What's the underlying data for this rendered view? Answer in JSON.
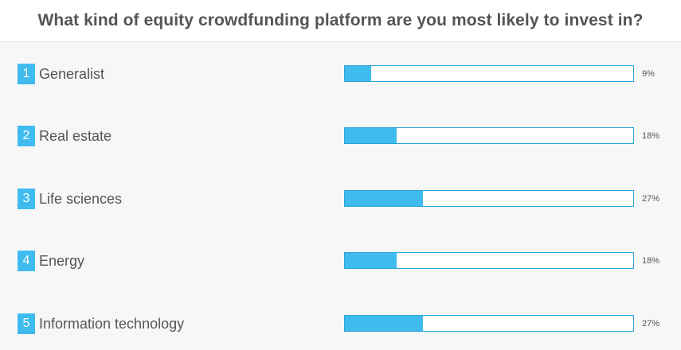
{
  "title": "What kind of equity crowdfunding platform are you most likely to invest in?",
  "colors": {
    "accent": "#3fbbee",
    "bar_border": "#2aa3d8",
    "text": "#555555",
    "panel_bg": "#f7f7f7"
  },
  "chart_data": {
    "type": "bar",
    "orientation": "horizontal",
    "title": "What kind of equity crowdfunding platform are you most likely to invest in?",
    "categories": [
      "Generalist",
      "Real estate",
      "Life sciences",
      "Energy",
      "Information technology"
    ],
    "values": [
      9,
      18,
      27,
      18,
      27
    ],
    "value_labels": [
      "9%",
      "18%",
      "27%",
      "18%",
      "27%"
    ],
    "ranks": [
      "1",
      "2",
      "3",
      "4",
      "5"
    ],
    "unit": "%",
    "xlim": [
      0,
      100
    ]
  }
}
